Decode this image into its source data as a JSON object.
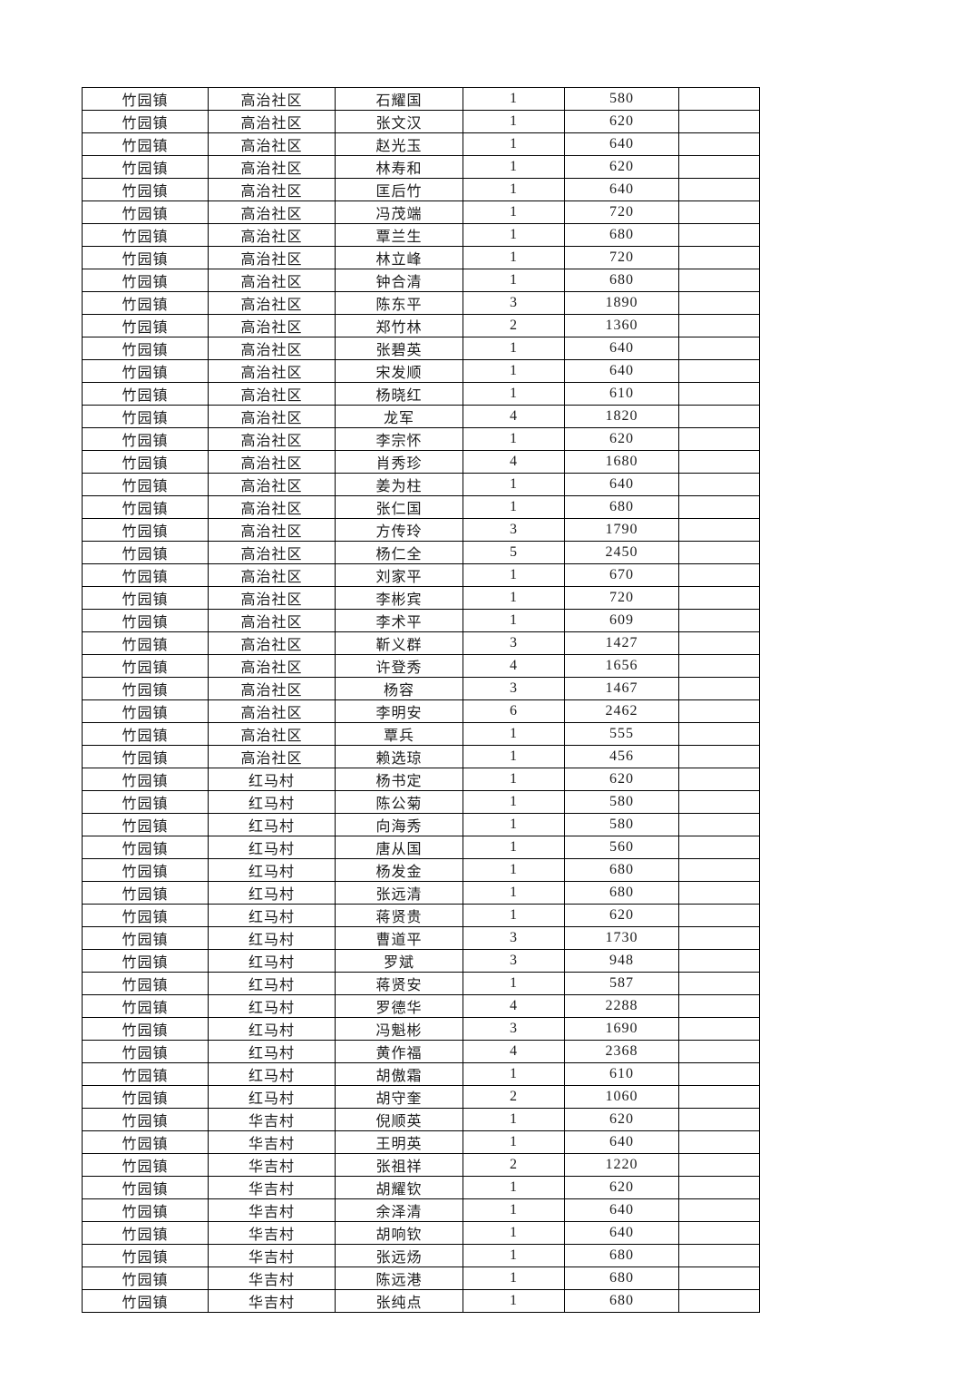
{
  "table": {
    "fields": [
      "town",
      "area",
      "name",
      "count",
      "amount",
      "note"
    ],
    "rows": [
      [
        "竹园镇",
        "高治社区",
        "石耀国",
        "1",
        "580",
        ""
      ],
      [
        "竹园镇",
        "高治社区",
        "张文汉",
        "1",
        "620",
        ""
      ],
      [
        "竹园镇",
        "高治社区",
        "赵光玉",
        "1",
        "640",
        ""
      ],
      [
        "竹园镇",
        "高治社区",
        "林寿和",
        "1",
        "620",
        ""
      ],
      [
        "竹园镇",
        "高治社区",
        "匡后竹",
        "1",
        "640",
        ""
      ],
      [
        "竹园镇",
        "高治社区",
        "冯茂端",
        "1",
        "720",
        ""
      ],
      [
        "竹园镇",
        "高治社区",
        "覃兰生",
        "1",
        "680",
        ""
      ],
      [
        "竹园镇",
        "高治社区",
        "林立峰",
        "1",
        "720",
        ""
      ],
      [
        "竹园镇",
        "高治社区",
        "钟合清",
        "1",
        "680",
        ""
      ],
      [
        "竹园镇",
        "高治社区",
        "陈东平",
        "3",
        "1890",
        ""
      ],
      [
        "竹园镇",
        "高治社区",
        "郑竹林",
        "2",
        "1360",
        ""
      ],
      [
        "竹园镇",
        "高治社区",
        "张碧英",
        "1",
        "640",
        ""
      ],
      [
        "竹园镇",
        "高治社区",
        "宋发顺",
        "1",
        "640",
        ""
      ],
      [
        "竹园镇",
        "高治社区",
        "杨晓红",
        "1",
        "610",
        ""
      ],
      [
        "竹园镇",
        "高治社区",
        "龙军",
        "4",
        "1820",
        ""
      ],
      [
        "竹园镇",
        "高治社区",
        "李宗怀",
        "1",
        "620",
        ""
      ],
      [
        "竹园镇",
        "高治社区",
        "肖秀珍",
        "4",
        "1680",
        ""
      ],
      [
        "竹园镇",
        "高治社区",
        "姜为柱",
        "1",
        "640",
        ""
      ],
      [
        "竹园镇",
        "高治社区",
        "张仁国",
        "1",
        "680",
        ""
      ],
      [
        "竹园镇",
        "高治社区",
        "方传玲",
        "3",
        "1790",
        ""
      ],
      [
        "竹园镇",
        "高治社区",
        "杨仁全",
        "5",
        "2450",
        ""
      ],
      [
        "竹园镇",
        "高治社区",
        "刘家平",
        "1",
        "670",
        ""
      ],
      [
        "竹园镇",
        "高治社区",
        "李彬宾",
        "1",
        "720",
        ""
      ],
      [
        "竹园镇",
        "高治社区",
        "李术平",
        "1",
        "609",
        ""
      ],
      [
        "竹园镇",
        "高治社区",
        "靳义群",
        "3",
        "1427",
        ""
      ],
      [
        "竹园镇",
        "高治社区",
        "许登秀",
        "4",
        "1656",
        ""
      ],
      [
        "竹园镇",
        "高治社区",
        "杨容",
        "3",
        "1467",
        ""
      ],
      [
        "竹园镇",
        "高治社区",
        "李明安",
        "6",
        "2462",
        ""
      ],
      [
        "竹园镇",
        "高治社区",
        "覃兵",
        "1",
        "555",
        ""
      ],
      [
        "竹园镇",
        "高治社区",
        "赖选琼",
        "1",
        "456",
        ""
      ],
      [
        "竹园镇",
        "红马村",
        "杨书定",
        "1",
        "620",
        ""
      ],
      [
        "竹园镇",
        "红马村",
        "陈公菊",
        "1",
        "580",
        ""
      ],
      [
        "竹园镇",
        "红马村",
        "向海秀",
        "1",
        "580",
        ""
      ],
      [
        "竹园镇",
        "红马村",
        "唐从国",
        "1",
        "560",
        ""
      ],
      [
        "竹园镇",
        "红马村",
        "杨发金",
        "1",
        "680",
        ""
      ],
      [
        "竹园镇",
        "红马村",
        "张远清",
        "1",
        "680",
        ""
      ],
      [
        "竹园镇",
        "红马村",
        "蒋贤贵",
        "1",
        "620",
        ""
      ],
      [
        "竹园镇",
        "红马村",
        "曹道平",
        "3",
        "1730",
        ""
      ],
      [
        "竹园镇",
        "红马村",
        "罗斌",
        "3",
        "948",
        ""
      ],
      [
        "竹园镇",
        "红马村",
        "蒋贤安",
        "1",
        "587",
        ""
      ],
      [
        "竹园镇",
        "红马村",
        "罗德华",
        "4",
        "2288",
        ""
      ],
      [
        "竹园镇",
        "红马村",
        "冯魁彬",
        "3",
        "1690",
        ""
      ],
      [
        "竹园镇",
        "红马村",
        "黄作福",
        "4",
        "2368",
        ""
      ],
      [
        "竹园镇",
        "红马村",
        "胡傲霜",
        "1",
        "610",
        ""
      ],
      [
        "竹园镇",
        "红马村",
        "胡守奎",
        "2",
        "1060",
        ""
      ],
      [
        "竹园镇",
        "华吉村",
        "倪顺英",
        "1",
        "620",
        ""
      ],
      [
        "竹园镇",
        "华吉村",
        "王明英",
        "1",
        "640",
        ""
      ],
      [
        "竹园镇",
        "华吉村",
        "张祖祥",
        "2",
        "1220",
        ""
      ],
      [
        "竹园镇",
        "华吉村",
        "胡耀钦",
        "1",
        "620",
        ""
      ],
      [
        "竹园镇",
        "华吉村",
        "余泽清",
        "1",
        "640",
        ""
      ],
      [
        "竹园镇",
        "华吉村",
        "胡响钦",
        "1",
        "640",
        ""
      ],
      [
        "竹园镇",
        "华吉村",
        "张远炀",
        "1",
        "680",
        ""
      ],
      [
        "竹园镇",
        "华吉村",
        "陈远港",
        "1",
        "680",
        ""
      ],
      [
        "竹园镇",
        "华吉村",
        "张纯点",
        "1",
        "680",
        ""
      ]
    ]
  }
}
